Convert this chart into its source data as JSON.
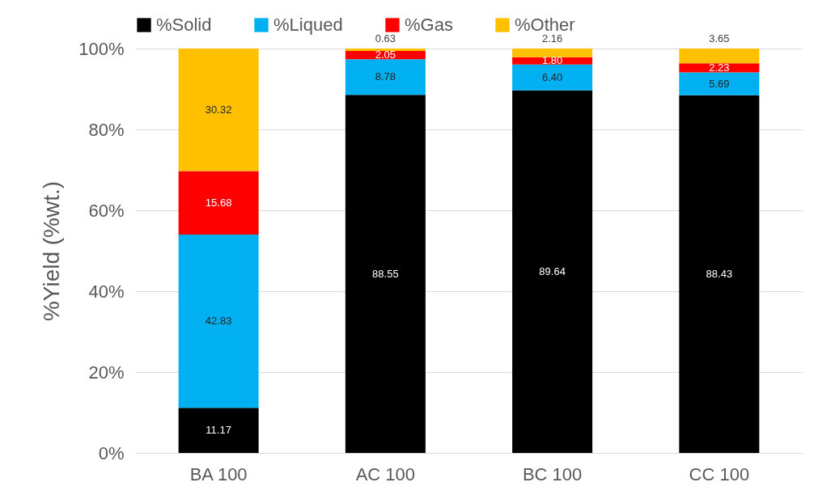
{
  "chart_data": {
    "type": "bar",
    "stacked": true,
    "ylabel": "%Yield (%wt.)",
    "categories": [
      "BA 100",
      "AC 100",
      "BC 100",
      "CC 100"
    ],
    "series": [
      {
        "name": "%Solid",
        "color": "#000000",
        "values": [
          11.17,
          88.55,
          89.64,
          88.43
        ],
        "value_labels": [
          "11.17",
          "88.55",
          "89.64",
          "88.43"
        ]
      },
      {
        "name": "%Liqued",
        "color": "#00b0f0",
        "values": [
          42.83,
          8.78,
          6.4,
          5.69
        ],
        "value_labels": [
          "42.83",
          "8.78",
          "6.40",
          "5.69"
        ]
      },
      {
        "name": "%Gas",
        "color": "#ff0000",
        "values": [
          15.68,
          2.05,
          1.8,
          2.23
        ],
        "value_labels": [
          "15.68",
          "2.05",
          "1.80",
          "2.23"
        ]
      },
      {
        "name": "%Other",
        "color": "#ffc000",
        "values": [
          30.32,
          0.63,
          2.16,
          3.65
        ],
        "value_labels": [
          "30.32",
          "0.63",
          "2.16",
          "3.65"
        ]
      }
    ],
    "ylim": [
      0,
      100
    ],
    "yticks": [
      {
        "value": 0,
        "label": "0%"
      },
      {
        "value": 20,
        "label": "20%"
      },
      {
        "value": 40,
        "label": "40%"
      },
      {
        "value": 60,
        "label": "60%"
      },
      {
        "value": 80,
        "label": "80%"
      },
      {
        "value": 100,
        "label": "100%"
      }
    ],
    "grid": "y",
    "legend": "top"
  }
}
